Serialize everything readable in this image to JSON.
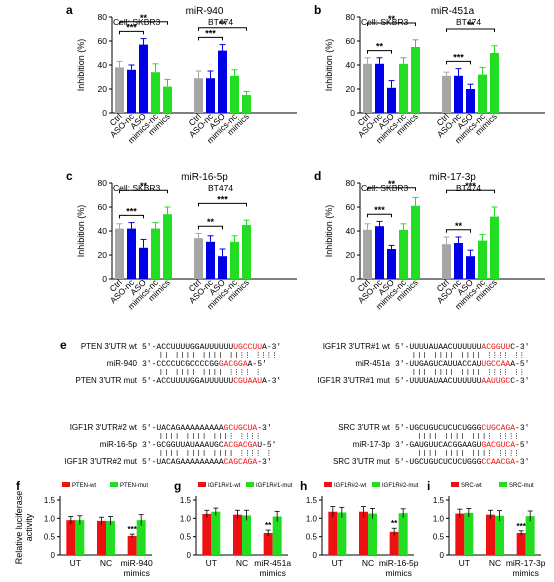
{
  "colors": {
    "gray": "#a6a6a6",
    "blue": "#0000e6",
    "green": "#22dd22",
    "red": "#ee1111",
    "orange": "#ff4500",
    "black": "#000000"
  },
  "figure": {
    "panels_top": [
      {
        "letter": "a",
        "title": "miR-940",
        "ylabel": "Inhibition (%)",
        "ylim": [
          0,
          80
        ],
        "yticks": [
          0,
          20,
          40,
          60,
          80
        ],
        "group_labels": [
          "Cell: SKBR3",
          "BT474"
        ],
        "categories": [
          "Ctrl",
          "ASO-nc",
          "ASO",
          "mimics-nc",
          "mimics"
        ],
        "bar_colors": [
          "gray",
          "blue",
          "blue",
          "green",
          "green"
        ],
        "groups": [
          {
            "values": [
              38,
              36,
              57,
              34,
              22
            ],
            "errors": [
              5,
              4,
              5,
              7,
              6
            ],
            "sig": [
              {
                "from": 0,
                "to": 2,
                "label": "***"
              },
              {
                "from": 0,
                "to": 4,
                "label": "**"
              }
            ]
          },
          {
            "values": [
              29,
              29,
              52,
              31,
              15
            ],
            "errors": [
              6,
              6,
              5,
              5,
              3
            ],
            "sig": [
              {
                "from": 0,
                "to": 2,
                "label": "***"
              },
              {
                "from": 0,
                "to": 4,
                "label": "**"
              }
            ]
          }
        ]
      },
      {
        "letter": "b",
        "title": "miR-451a",
        "ylabel": "Inhibition (%)",
        "ylim": [
          0,
          80
        ],
        "yticks": [
          0,
          20,
          40,
          60,
          80
        ],
        "group_labels": [
          "Cell: SKBR3",
          "BT474"
        ],
        "categories": [
          "Ctrl",
          "ASO-nc",
          "ASO",
          "mimics-nc",
          "mimics"
        ],
        "bar_colors": [
          "gray",
          "blue",
          "blue",
          "green",
          "green"
        ],
        "groups": [
          {
            "values": [
              41,
              41,
              21,
              41,
              55
            ],
            "errors": [
              5,
              5,
              6,
              5,
              6
            ],
            "sig": [
              {
                "from": 0,
                "to": 2,
                "label": "**"
              },
              {
                "from": 0,
                "to": 4,
                "label": "**"
              }
            ]
          },
          {
            "values": [
              31,
              31,
              20,
              32,
              50
            ],
            "errors": [
              3,
              6,
              4,
              6,
              6
            ],
            "sig": [
              {
                "from": 0,
                "to": 2,
                "label": "***"
              },
              {
                "from": 0,
                "to": 4,
                "label": "**"
              }
            ]
          }
        ]
      },
      {
        "letter": "c",
        "title": "miR-16-5p",
        "ylabel": "Inhibition (%)",
        "ylim": [
          0,
          80
        ],
        "yticks": [
          0,
          20,
          40,
          60,
          80
        ],
        "group_labels": [
          "Cell: SKBR3",
          "BT474"
        ],
        "categories": [
          "Ctrl",
          "ASO-nc",
          "ASO",
          "mimics-nc",
          "mimics"
        ],
        "bar_colors": [
          "gray",
          "blue",
          "blue",
          "green",
          "green"
        ],
        "groups": [
          {
            "values": [
              42,
              42,
              26,
              42,
              54
            ],
            "errors": [
              4,
              5,
              7,
              5,
              6
            ],
            "sig": [
              {
                "from": 0,
                "to": 2,
                "label": "***"
              },
              {
                "from": 0,
                "to": 4,
                "label": "**"
              }
            ]
          },
          {
            "values": [
              34,
              31,
              19,
              31,
              45
            ],
            "errors": [
              4,
              5,
              6,
              5,
              4
            ],
            "sig": [
              {
                "from": 0,
                "to": 2,
                "label": "**"
              },
              {
                "from": 0,
                "to": 4,
                "label": "***"
              }
            ]
          }
        ]
      },
      {
        "letter": "d",
        "title": "miR-17-3p",
        "ylabel": "Inhibition (%)",
        "ylim": [
          0,
          80
        ],
        "yticks": [
          0,
          20,
          40,
          60,
          80
        ],
        "group_labels": [
          "Cell: SKBR3",
          "BT474"
        ],
        "categories": [
          "Ctrl",
          "ASO-nc",
          "ASO",
          "mimics-nc",
          "mimics"
        ],
        "bar_colors": [
          "gray",
          "blue",
          "blue",
          "green",
          "green"
        ],
        "groups": [
          {
            "values": [
              41,
              44,
              25,
              41,
              61
            ],
            "errors": [
              5,
              4,
              3,
              5,
              7
            ],
            "sig": [
              {
                "from": 0,
                "to": 2,
                "label": "***"
              },
              {
                "from": 0,
                "to": 4,
                "label": "**"
              }
            ]
          },
          {
            "values": [
              29,
              30,
              19,
              32,
              52
            ],
            "errors": [
              6,
              5,
              5,
              5,
              8
            ],
            "sig": [
              {
                "from": 0,
                "to": 2,
                "label": "**"
              },
              {
                "from": 0,
                "to": 4,
                "label": "***"
              }
            ]
          }
        ]
      }
    ],
    "panel_e": {
      "letter": "e",
      "blocks": [
        {
          "rows": [
            {
              "label": "PTEN 3′UTR wt",
              "seq": [
                [
                  "5′-ACCUUUUGGAUUUUUU",
                  "black"
                ],
                [
                  "UGCCUU",
                  "red"
                ],
                [
                  "A-3′",
                  "black"
                ]
              ]
            },
            {
              "label": "miR-940",
              "seq": [
                [
                  "3′-CCCCUCGCCCCGG",
                  "black"
                ],
                [
                  "GACGGA",
                  "red"
                ],
                [
                  "A-5′",
                  "black"
                ]
              ]
            },
            {
              "label": "PTEN 3′UTR mut",
              "seq": [
                [
                  "5′-ACCUUUUGGAUUUUUU",
                  "black"
                ],
                [
                  "CGUAAU",
                  "red"
                ],
                [
                  "A-3′",
                  "black"
                ]
              ]
            }
          ]
        },
        {
          "rows": [
            {
              "label": "IGF1R 3′UTR#1 wt",
              "seq": [
                [
                  "5′-UUUUAUAACUUUUUU",
                  "black"
                ],
                [
                  "ACGGUU",
                  "red"
                ],
                [
                  "C-3′",
                  "black"
                ]
              ]
            },
            {
              "label": "miR-451a",
              "seq": [
                [
                  "3′-UUGAGUCAUUACCAU",
                  "black"
                ],
                [
                  "UGCCAA",
                  "red"
                ],
                [
                  "A-5′",
                  "black"
                ]
              ]
            },
            {
              "label": "IGF1R 3′UTR#1 mut",
              "seq": [
                [
                  "5′-UUUUAUAACUUUUUU",
                  "black"
                ],
                [
                  "AAUUGC",
                  "red"
                ],
                [
                  "C-3′",
                  "black"
                ]
              ]
            }
          ]
        },
        {
          "rows": [
            {
              "label": "IGF1R 3′UTR#2 wt",
              "seq": [
                [
                  "5′-UACAGAAAAAAAAA",
                  "black"
                ],
                [
                  "GCUGCUA",
                  "red"
                ],
                [
                  "-3′",
                  "black"
                ]
              ]
            },
            {
              "label": "miR-16-5p",
              "seq": [
                [
                  "3′-GCGGUUAUAAAUGC",
                  "black"
                ],
                [
                  "ACGACGA",
                  "red"
                ],
                [
                  "U-5′",
                  "black"
                ]
              ]
            },
            {
              "label": "IGF1R 3′UTR#2 mut",
              "seq": [
                [
                  "5′-UACAGAAAAAAAAA",
                  "black"
                ],
                [
                  "CAGCAGA",
                  "red"
                ],
                [
                  "-3′",
                  "black"
                ]
              ]
            }
          ]
        },
        {
          "rows": [
            {
              "label": "SRC 3′UTR wt",
              "seq": [
                [
                  "5′-UGCUGUCUCUCUGGG",
                  "black"
                ],
                [
                  "CUGCAGA",
                  "red"
                ],
                [
                  "-3′",
                  "black"
                ]
              ]
            },
            {
              "label": "miR-17-3p",
              "seq": [
                [
                  "3′-GAUGUUCACGGAAGU",
                  "black"
                ],
                [
                  "GACGUCA",
                  "red"
                ],
                [
                  "-5′",
                  "black"
                ]
              ]
            },
            {
              "label": "SRC 3′UTR mut",
              "seq": [
                [
                  "5′-UGCUGUCUCUCUGGG",
                  "black"
                ],
                [
                  "CCAACGA",
                  "red"
                ],
                [
                  "-3′",
                  "black"
                ]
              ]
            }
          ]
        }
      ]
    },
    "panels_bottom": [
      {
        "letter": "f",
        "ylabel": "Relative luciferase activity",
        "ylim": [
          0,
          1.5
        ],
        "yticks": [
          0,
          0.5,
          1.0,
          1.5
        ],
        "legend": [
          "PTEN-wt",
          "PTEN-mut"
        ],
        "categories": [
          "UT",
          "NC",
          "miR-940 mimics"
        ],
        "wt": [
          0.95,
          0.93,
          0.52
        ],
        "wt_err": [
          0.1,
          0.1,
          0.05
        ],
        "mut": [
          0.95,
          0.93,
          0.95
        ],
        "mut_err": [
          0.12,
          0.12,
          0.15
        ],
        "sig": [
          "",
          "",
          "***"
        ]
      },
      {
        "letter": "g",
        "ylabel": "",
        "ylim": [
          0,
          1.5
        ],
        "yticks": [
          0,
          0.5,
          1.0,
          1.5
        ],
        "legend": [
          "IGF1R#1-wt",
          "IGF1R#1-mut"
        ],
        "categories": [
          "UT",
          "NC",
          "miR-451a mimics"
        ],
        "wt": [
          1.12,
          1.1,
          0.6
        ],
        "wt_err": [
          0.1,
          0.12,
          0.08
        ],
        "mut": [
          1.18,
          1.08,
          1.05
        ],
        "mut_err": [
          0.1,
          0.14,
          0.14
        ],
        "sig": [
          "",
          "",
          "**"
        ]
      },
      {
        "letter": "h",
        "ylabel": "",
        "ylim": [
          0,
          1.5
        ],
        "yticks": [
          0,
          0.5,
          1.0,
          1.5
        ],
        "legend": [
          "IGF1R#2-wt",
          "IGF1R#2-mut"
        ],
        "categories": [
          "UT",
          "NC",
          "miR-16-5p mimics"
        ],
        "wt": [
          1.18,
          1.18,
          0.63
        ],
        "wt_err": [
          0.14,
          0.14,
          0.1
        ],
        "mut": [
          1.16,
          1.13,
          1.14
        ],
        "mut_err": [
          0.14,
          0.14,
          0.12
        ],
        "sig": [
          "",
          "",
          "**"
        ]
      },
      {
        "letter": "i",
        "ylabel": "",
        "ylim": [
          0,
          1.5
        ],
        "yticks": [
          0,
          0.5,
          1.0,
          1.5
        ],
        "legend": [
          "SRC-wt",
          "SRC-mut"
        ],
        "categories": [
          "UT",
          "NC",
          "miR-17-3p mimics"
        ],
        "wt": [
          1.13,
          1.1,
          0.6
        ],
        "wt_err": [
          0.12,
          0.12,
          0.06
        ],
        "mut": [
          1.15,
          1.07,
          1.06
        ],
        "mut_err": [
          0.12,
          0.14,
          0.14
        ],
        "sig": [
          "",
          "",
          "***"
        ]
      }
    ]
  },
  "chart_data": [
    {
      "type": "bar",
      "title": "miR-940",
      "ylabel": "Inhibition (%)",
      "ylim": [
        0,
        80
      ],
      "categories": [
        "Ctrl",
        "ASO-nc",
        "ASO",
        "mimics-nc",
        "mimics"
      ],
      "series": [
        {
          "name": "SKBR3",
          "values": [
            38,
            36,
            57,
            34,
            22
          ]
        },
        {
          "name": "BT474",
          "values": [
            29,
            29,
            52,
            31,
            15
          ]
        }
      ]
    },
    {
      "type": "bar",
      "title": "miR-451a",
      "ylabel": "Inhibition (%)",
      "ylim": [
        0,
        80
      ],
      "categories": [
        "Ctrl",
        "ASO-nc",
        "ASO",
        "mimics-nc",
        "mimics"
      ],
      "series": [
        {
          "name": "SKBR3",
          "values": [
            41,
            41,
            21,
            41,
            55
          ]
        },
        {
          "name": "BT474",
          "values": [
            31,
            31,
            20,
            32,
            50
          ]
        }
      ]
    },
    {
      "type": "bar",
      "title": "miR-16-5p",
      "ylabel": "Inhibition (%)",
      "ylim": [
        0,
        80
      ],
      "categories": [
        "Ctrl",
        "ASO-nc",
        "ASO",
        "mimics-nc",
        "mimics"
      ],
      "series": [
        {
          "name": "SKBR3",
          "values": [
            42,
            42,
            26,
            42,
            54
          ]
        },
        {
          "name": "BT474",
          "values": [
            34,
            31,
            19,
            31,
            45
          ]
        }
      ]
    },
    {
      "type": "bar",
      "title": "miR-17-3p",
      "ylabel": "Inhibition (%)",
      "ylim": [
        0,
        80
      ],
      "categories": [
        "Ctrl",
        "ASO-nc",
        "ASO",
        "mimics-nc",
        "mimics"
      ],
      "series": [
        {
          "name": "SKBR3",
          "values": [
            41,
            44,
            25,
            41,
            61
          ]
        },
        {
          "name": "BT474",
          "values": [
            29,
            30,
            19,
            32,
            52
          ]
        }
      ]
    },
    {
      "type": "bar",
      "ylabel": "Relative luciferase activity",
      "ylim": [
        0,
        1.5
      ],
      "categories": [
        "UT",
        "NC",
        "miR-940 mimics"
      ],
      "series": [
        {
          "name": "PTEN-wt",
          "values": [
            0.95,
            0.93,
            0.52
          ]
        },
        {
          "name": "PTEN-mut",
          "values": [
            0.95,
            0.93,
            0.95
          ]
        }
      ]
    },
    {
      "type": "bar",
      "ylim": [
        0,
        1.5
      ],
      "categories": [
        "UT",
        "NC",
        "miR-451a mimics"
      ],
      "series": [
        {
          "name": "IGF1R#1-wt",
          "values": [
            1.12,
            1.1,
            0.6
          ]
        },
        {
          "name": "IGF1R#1-mut",
          "values": [
            1.18,
            1.08,
            1.05
          ]
        }
      ]
    },
    {
      "type": "bar",
      "ylim": [
        0,
        1.5
      ],
      "categories": [
        "UT",
        "NC",
        "miR-16-5p mimics"
      ],
      "series": [
        {
          "name": "IGF1R#2-wt",
          "values": [
            1.18,
            1.18,
            0.63
          ]
        },
        {
          "name": "IGF1R#2-mut",
          "values": [
            1.16,
            1.13,
            1.14
          ]
        }
      ]
    },
    {
      "type": "bar",
      "ylim": [
        0,
        1.5
      ],
      "categories": [
        "UT",
        "NC",
        "miR-17-3p mimics"
      ],
      "series": [
        {
          "name": "SRC-wt",
          "values": [
            1.13,
            1.1,
            0.6
          ]
        },
        {
          "name": "SRC-mut",
          "values": [
            1.15,
            1.07,
            1.06
          ]
        }
      ]
    }
  ]
}
